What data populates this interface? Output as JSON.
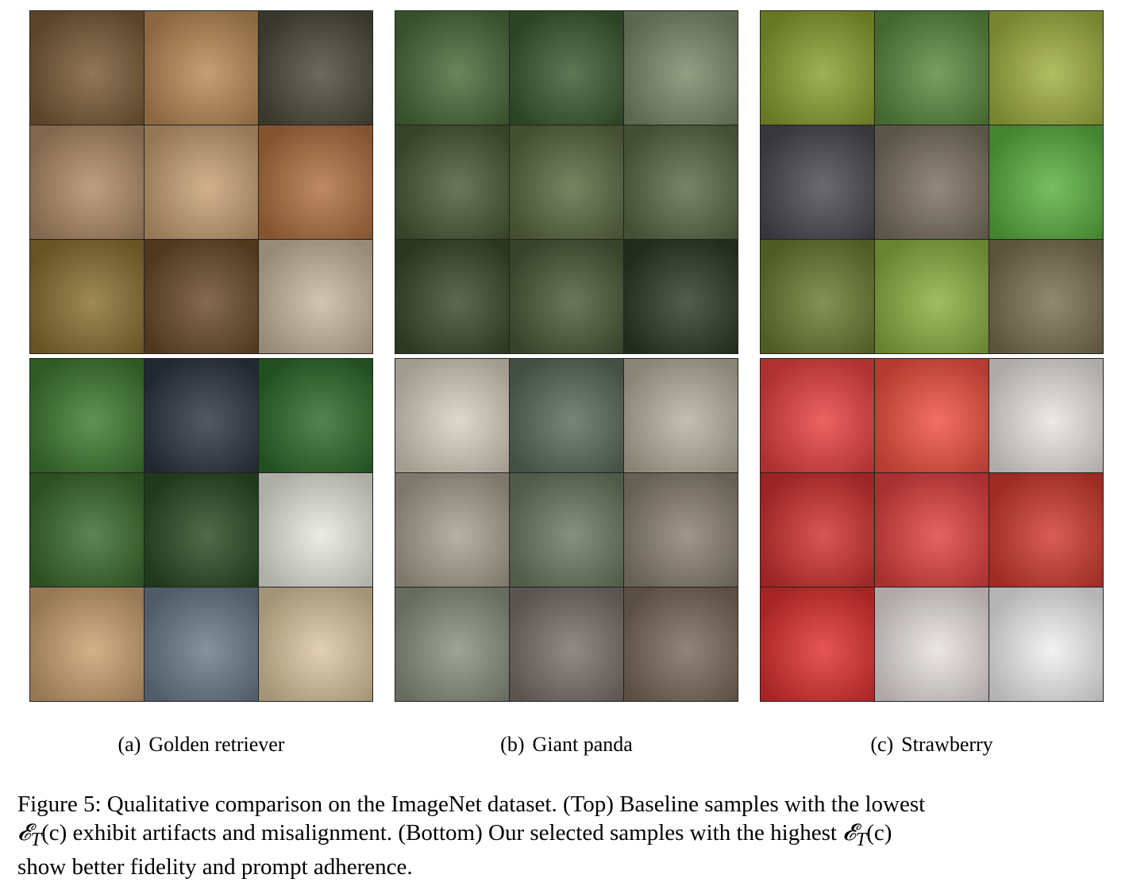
{
  "figure": {
    "columns": [
      {
        "subcaption_tag": "(a)",
        "subcaption_text": "Golden retriever",
        "top_grid_desc": "baseline samples",
        "top_colors": [
          "#7a5a35",
          "#b98a55",
          "#4a4a3a",
          "#b08a65",
          "#c8a074",
          "#b07040",
          "#8a7030",
          "#6a4a28",
          "#c9b8a0"
        ],
        "bottom_colors": [
          "#3d7a30",
          "#2e3540",
          "#2e6a2a",
          "#3a6a2c",
          "#2a4a24",
          "#e8e8e0",
          "#c9a070",
          "#6a7a8a",
          "#dac6a0"
        ]
      },
      {
        "subcaption_tag": "(b)",
        "subcaption_text": "Giant panda",
        "top_colors": [
          "#4a6a3a",
          "#3a5a30",
          "#7a8a6a",
          "#4a5a35",
          "#5a6a40",
          "#5a6a45",
          "#3a4a2a",
          "#4a5a38",
          "#2e3a25"
        ],
        "bottom_colors": [
          "#d8d0c0",
          "#5a6a5a",
          "#b8b0a0",
          "#a8a090",
          "#6a7a60",
          "#8a8070",
          "#8a9080",
          "#7a7068",
          "#7a6a5a"
        ]
      },
      {
        "subcaption_tag": "(c)",
        "subcaption_text": "Strawberry",
        "top_colors": [
          "#8aa030",
          "#5a8a40",
          "#a0b040",
          "#4a4a50",
          "#7a7060",
          "#5ab040",
          "#6a7a30",
          "#8ab040",
          "#7a7050"
        ],
        "bottom_colors": [
          "#e84040",
          "#f05040",
          "#e8e4e0",
          "#d03030",
          "#e04040",
          "#d03a30",
          "#e03030",
          "#e8e0e0",
          "#f0f0f0"
        ]
      }
    ],
    "caption": {
      "label": "Figure 5:",
      "line1_a": "Qualitative comparison on the ImageNet dataset. (Top) Baseline samples with the lowest",
      "sym": "𝓔",
      "sub": "T",
      "arg": "(c)",
      "line2_a": "exhibit artifacts and misalignment. (Bottom) Our selected samples with the highest",
      "line3": "show better fidelity and prompt adherence."
    }
  }
}
